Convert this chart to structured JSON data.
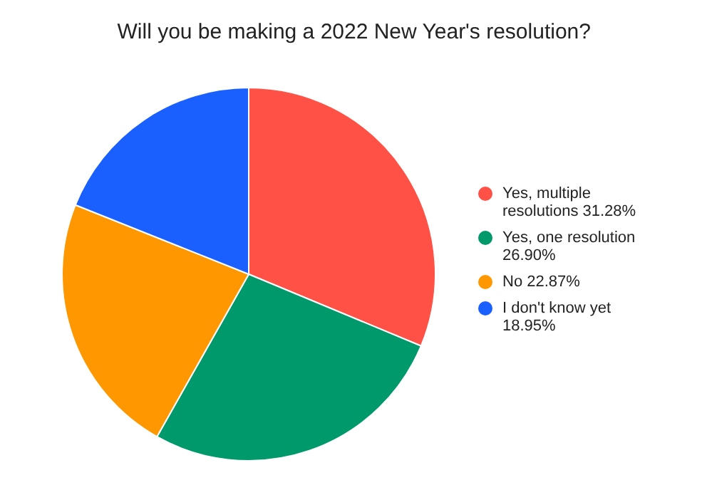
{
  "chart_data": {
    "type": "pie",
    "title": "Will you be making a 2022 New Year's resolution?",
    "categories": [
      "Yes, multiple resolutions",
      "Yes, one resolution",
      "No",
      "I don't know yet"
    ],
    "values": [
      31.28,
      26.9,
      22.87,
      18.95
    ],
    "value_labels": [
      "31.28%",
      "26.90%",
      "22.87%",
      "18.95%"
    ],
    "colors": [
      "#ff5145",
      "#00996b",
      "#ff9800",
      "#1a5fff"
    ],
    "legend": "right"
  }
}
